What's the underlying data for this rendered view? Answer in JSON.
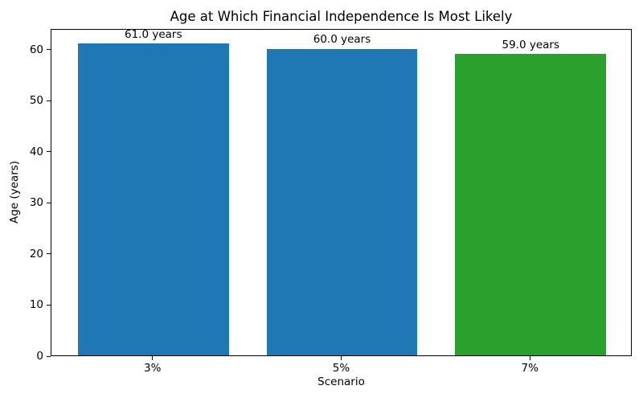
{
  "chart_data": {
    "type": "bar",
    "title": "Age at Which Financial Independence Is Most Likely",
    "xlabel": "Scenario",
    "ylabel": "Age (years)",
    "categories": [
      "3%",
      "5%",
      "7%"
    ],
    "values": [
      61.0,
      60.0,
      59.0
    ],
    "bar_labels": [
      "61.0 years",
      "60.0 years",
      "59.0 years"
    ],
    "bar_colors": [
      "#1f77b4",
      "#1f77b4",
      "#2ca02c"
    ],
    "ylim": [
      0,
      64.05
    ],
    "yticks": [
      0,
      10,
      20,
      30,
      40,
      50,
      60
    ],
    "grid": false,
    "legend_position": "none",
    "background_color": "#ffffff",
    "spine_color": "#000000"
  }
}
